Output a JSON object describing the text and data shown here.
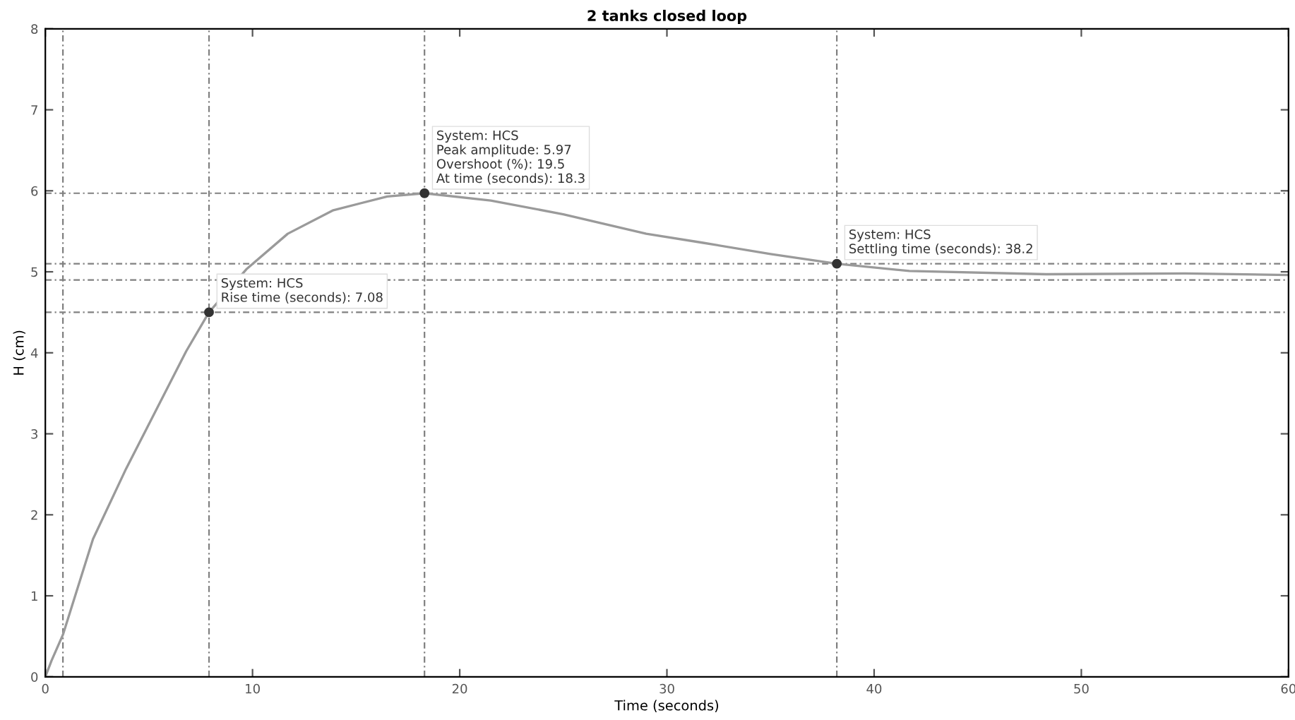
{
  "chart_data": {
    "type": "line",
    "title": "2 tanks closed loop",
    "xlabel": "Time (seconds)",
    "ylabel": "H (cm)",
    "x": [
      0,
      0.3,
      0.85,
      2.3,
      3.9,
      6.8,
      7.9,
      9.7,
      11.7,
      13.9,
      16.5,
      18.3,
      21.5,
      25,
      29,
      31.7,
      35,
      38.2,
      41.7,
      48.3,
      55,
      60
    ],
    "series": [
      {
        "color": "#9a9a9a",
        "values": [
          0,
          0.2,
          0.52,
          1.7,
          2.57,
          4.02,
          4.5,
          5.03,
          5.47,
          5.76,
          5.93,
          5.97,
          5.88,
          5.71,
          5.47,
          5.36,
          5.22,
          5.1,
          5.01,
          4.97,
          4.98,
          4.96
        ]
      }
    ],
    "xlim": [
      0,
      60
    ],
    "xticks": [
      0,
      10,
      20,
      30,
      40,
      50,
      60
    ],
    "ylim": [
      0,
      8
    ],
    "yticks": [
      0,
      1,
      2,
      3,
      4,
      5,
      6,
      7,
      8
    ],
    "grid": false,
    "marker": "none",
    "line_style": "solid",
    "ref_lines": [
      {
        "axis": "y",
        "value": 5.97,
        "color": "#808080",
        "line_style": "dashed"
      },
      {
        "axis": "y",
        "value": 5.1,
        "color": "#808080",
        "line_style": "dashed"
      },
      {
        "axis": "y",
        "value": 4.9,
        "color": "#808080",
        "line_style": "dashed"
      },
      {
        "axis": "y",
        "value": 4.5,
        "color": "#808080",
        "line_style": "dashed"
      },
      {
        "axis": "x",
        "value": 0.85,
        "color": "#808080",
        "line_style": "dashed"
      },
      {
        "axis": "x",
        "value": 7.9,
        "color": "#808080",
        "line_style": "dashed"
      },
      {
        "axis": "x",
        "value": 18.3,
        "color": "#808080",
        "line_style": "dashed"
      },
      {
        "axis": "x",
        "value": 38.2,
        "color": "#808080",
        "line_style": "dashed"
      }
    ],
    "annotations": [
      {
        "text": "System: HCS\nRise time (seconds): 7.08",
        "x": 7.9,
        "y": 4.5
      },
      {
        "text": "System: HCS\nPeak amplitude: 5.97\nOvershoot (%): 19.5\nAt time (seconds): 18.3",
        "x": 18.3,
        "y": 5.97
      },
      {
        "text": "System: HCS\nSettling time (seconds): 38.2",
        "x": 38.2,
        "y": 5.1
      }
    ]
  }
}
